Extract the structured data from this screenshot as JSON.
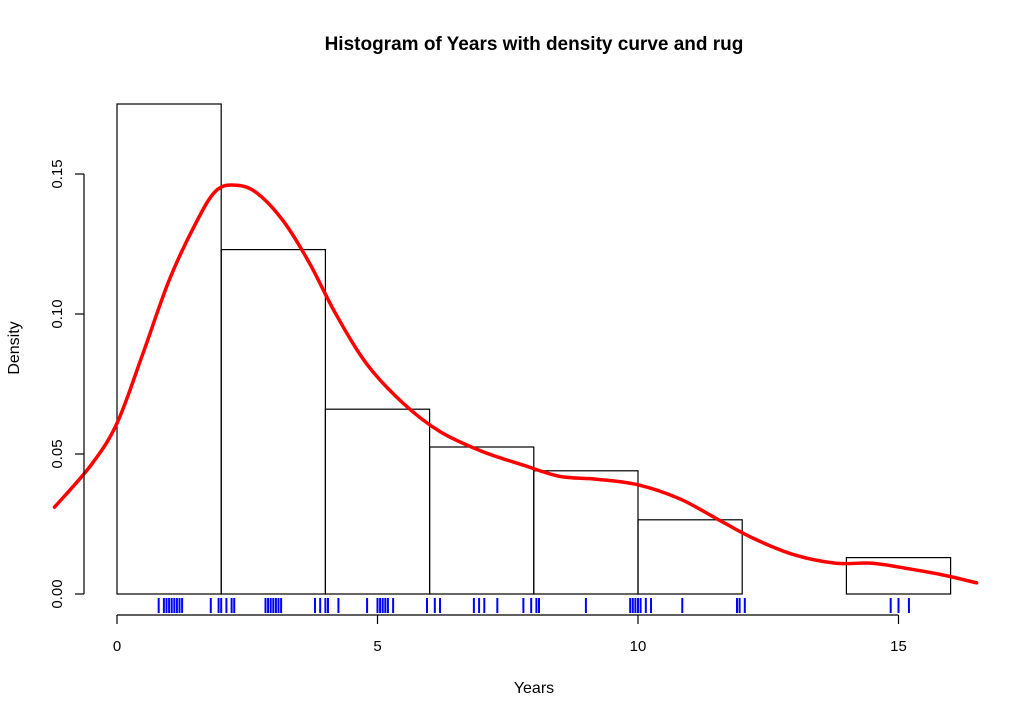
{
  "chart_data": {
    "type": "bar",
    "title": "Histogram of Years with density curve and rug",
    "xlabel": "Years",
    "ylabel": "Density",
    "xlim": [
      0,
      16.7
    ],
    "ylim": [
      0,
      0.175
    ],
    "x_ticks": [
      0,
      5,
      10,
      15
    ],
    "x_tick_labels": [
      "0",
      "5",
      "10",
      "15"
    ],
    "y_ticks": [
      0.0,
      0.05,
      0.1,
      0.15
    ],
    "y_tick_labels": [
      "0.00",
      "0.05",
      "0.10",
      "0.15"
    ],
    "bins": [
      {
        "start": 0,
        "end": 2,
        "density": 0.175
      },
      {
        "start": 2,
        "end": 4,
        "density": 0.123
      },
      {
        "start": 4,
        "end": 6,
        "density": 0.066
      },
      {
        "start": 6,
        "end": 8,
        "density": 0.0525
      },
      {
        "start": 8,
        "end": 10,
        "density": 0.044
      },
      {
        "start": 10,
        "end": 12,
        "density": 0.0265
      },
      {
        "start": 12,
        "end": 14,
        "density": 0.0
      },
      {
        "start": 14,
        "end": 16,
        "density": 0.013
      }
    ],
    "density_curve": {
      "color": "#ff0000",
      "x": [
        -1.2,
        -0.5,
        0,
        0.5,
        1.0,
        1.5,
        1.9,
        2.3,
        2.7,
        3.2,
        3.7,
        4.2,
        4.8,
        5.5,
        6.2,
        7.0,
        7.8,
        8.5,
        9.2,
        10.0,
        10.8,
        11.5,
        12.2,
        13.0,
        13.8,
        14.5,
        15.2,
        15.8,
        16.5
      ],
      "y": [
        0.031,
        0.046,
        0.061,
        0.086,
        0.112,
        0.132,
        0.144,
        0.146,
        0.143,
        0.133,
        0.118,
        0.1,
        0.082,
        0.068,
        0.058,
        0.051,
        0.046,
        0.042,
        0.041,
        0.039,
        0.034,
        0.027,
        0.02,
        0.014,
        0.011,
        0.011,
        0.009,
        0.007,
        0.004
      ]
    },
    "rug": {
      "color": "#0000ff",
      "values": [
        0.8,
        0.9,
        0.95,
        1.0,
        1.05,
        1.1,
        1.15,
        1.2,
        1.25,
        1.8,
        1.95,
        2.0,
        2.1,
        2.2,
        2.25,
        2.85,
        2.9,
        2.95,
        3.0,
        3.05,
        3.1,
        3.15,
        3.8,
        3.9,
        4.0,
        4.05,
        4.25,
        4.8,
        5.0,
        5.05,
        5.1,
        5.15,
        5.2,
        5.3,
        5.95,
        6.1,
        6.2,
        6.85,
        6.95,
        7.05,
        7.3,
        7.8,
        7.95,
        8.05,
        8.1,
        9.0,
        9.85,
        9.9,
        9.95,
        10.0,
        10.05,
        10.15,
        10.25,
        10.85,
        11.9,
        11.95,
        12.05,
        14.85,
        15.0,
        15.2
      ]
    }
  }
}
